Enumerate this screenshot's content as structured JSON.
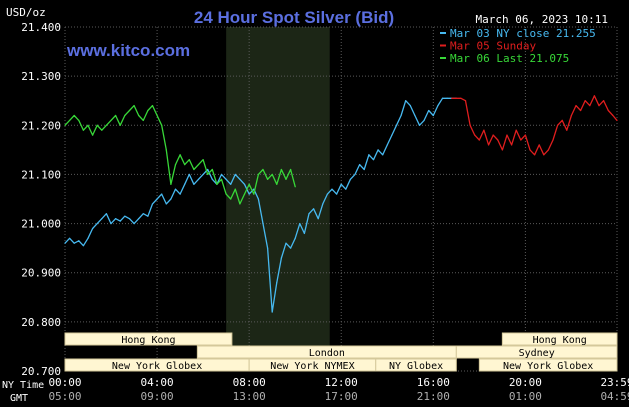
{
  "header": {
    "title": "24 Hour Spot Silver (Bid)",
    "unit_label": "USD/oz",
    "timestamp": "March 06, 2023 10:11",
    "website": "www.kitco.com"
  },
  "colors": {
    "background": "#000000",
    "title": "#5b6fe0",
    "grid": "#5a5a5a",
    "axis_text": "#ffffff",
    "series_nyclose": "#47b9f0",
    "series_sunday": "#e01e1e",
    "series_last": "#38d838",
    "session_box_fill": "#fff6d2",
    "session_box_stroke": "#d4c89a",
    "session_text": "#000000",
    "nymex_shade": "#1c2616"
  },
  "legend_items": [
    {
      "label": "Mar 03 NY close 21.255",
      "color": "#47b9f0"
    },
    {
      "label": "Mar 05 Sunday",
      "color": "#e01e1e"
    },
    {
      "label": "Mar 06 Last 21.075",
      "color": "#38d838"
    }
  ],
  "axis_labels": {
    "ny_time": "NY Time",
    "gmt": "GMT"
  },
  "x_ticks_ny": [
    "00:00",
    "04:00",
    "08:00",
    "12:00",
    "16:00",
    "20:00",
    "23:59"
  ],
  "x_ticks_gmt": [
    "05:00",
    "09:00",
    "13:00",
    "17:00",
    "21:00",
    "01:00",
    "04:59"
  ],
  "sessions": [
    {
      "label": "Hong Kong",
      "row": 0,
      "start": 0.0,
      "end": 7.25
    },
    {
      "label": "London",
      "row": 1,
      "start": 5.75,
      "end": 17.0
    },
    {
      "label": "New York Globex",
      "row": 2,
      "start": 0.0,
      "end": 8.0
    },
    {
      "label": "New York NYMEX",
      "row": 2,
      "start": 8.0,
      "end": 13.5
    },
    {
      "label": "NY Globex",
      "row": 2,
      "start": 13.5,
      "end": 17.0
    },
    {
      "label": "Hong Kong",
      "row": 0,
      "start": 19.0,
      "end": 23.98
    },
    {
      "label": "Sydney",
      "row": 1,
      "start": 17.0,
      "end": 23.98
    },
    {
      "label": "New York Globex",
      "row": 2,
      "start": 18.0,
      "end": 23.98
    }
  ],
  "chart_data": {
    "type": "line",
    "title": "24 Hour Spot Silver (Bid)",
    "ylabel": "USD/oz",
    "xlabel": "",
    "x_unit": "hours (NY time)",
    "xlim": [
      0,
      23.98
    ],
    "ylim": [
      20.7,
      21.4
    ],
    "y_ticks": [
      21.4,
      21.3,
      21.2,
      21.1,
      21.0,
      20.9,
      20.8,
      20.7
    ],
    "y_tick_labels": [
      "21.400",
      "21.300",
      "21.200",
      "21.100",
      "21.000",
      "20.900",
      "20.800",
      "20.700"
    ],
    "x_ticks": [
      0,
      4,
      8,
      12,
      16,
      20,
      23.98
    ],
    "nymex_session": [
      7.0,
      11.5
    ],
    "grid": true,
    "legend": "top-right",
    "series": [
      {
        "name": "Mar 03 NY close 21.255",
        "color": "#47b9f0",
        "x": [
          0.0,
          0.2,
          0.4,
          0.6,
          0.8,
          1.0,
          1.2,
          1.4,
          1.6,
          1.8,
          2.0,
          2.2,
          2.4,
          2.6,
          2.8,
          3.0,
          3.2,
          3.4,
          3.6,
          3.8,
          4.0,
          4.2,
          4.4,
          4.6,
          4.8,
          5.0,
          5.2,
          5.4,
          5.6,
          5.8,
          6.0,
          6.2,
          6.4,
          6.6,
          6.8,
          7.0,
          7.2,
          7.4,
          7.6,
          7.8,
          8.0,
          8.2,
          8.4,
          8.6,
          8.8,
          9.0,
          9.2,
          9.4,
          9.6,
          9.8,
          10.0,
          10.2,
          10.4,
          10.6,
          10.8,
          11.0,
          11.2,
          11.4,
          11.6,
          11.8,
          12.0,
          12.2,
          12.4,
          12.6,
          12.8,
          13.0,
          13.2,
          13.4,
          13.6,
          13.8,
          14.0,
          14.2,
          14.4,
          14.6,
          14.8,
          15.0,
          15.2,
          15.4,
          15.6,
          15.8,
          16.0,
          16.2,
          16.4,
          16.6,
          16.8,
          17.0
        ],
        "values": [
          20.96,
          20.97,
          20.96,
          20.965,
          20.955,
          20.97,
          20.99,
          21.0,
          21.01,
          21.02,
          21.0,
          21.01,
          21.005,
          21.015,
          21.01,
          21.0,
          21.01,
          21.02,
          21.015,
          21.04,
          21.05,
          21.06,
          21.04,
          21.05,
          21.07,
          21.06,
          21.08,
          21.1,
          21.08,
          21.09,
          21.1,
          21.11,
          21.09,
          21.08,
          21.1,
          21.09,
          21.08,
          21.1,
          21.09,
          21.08,
          21.06,
          21.07,
          21.05,
          21.0,
          20.95,
          20.82,
          20.88,
          20.93,
          20.96,
          20.95,
          20.97,
          21.0,
          20.98,
          21.02,
          21.03,
          21.01,
          21.04,
          21.06,
          21.07,
          21.06,
          21.08,
          21.07,
          21.09,
          21.1,
          21.12,
          21.11,
          21.14,
          21.13,
          21.15,
          21.14,
          21.16,
          21.18,
          21.2,
          21.22,
          21.25,
          21.24,
          21.22,
          21.2,
          21.21,
          21.23,
          21.22,
          21.24,
          21.255,
          21.255,
          21.255,
          21.255
        ]
      },
      {
        "name": "Mar 05 Sunday",
        "color": "#e01e1e",
        "x": [
          16.8,
          17.0,
          17.2,
          17.4,
          17.6,
          17.8,
          18.0,
          18.2,
          18.4,
          18.6,
          18.8,
          19.0,
          19.2,
          19.4,
          19.6,
          19.8,
          20.0,
          20.2,
          20.4,
          20.6,
          20.8,
          21.0,
          21.2,
          21.4,
          21.6,
          21.8,
          22.0,
          22.2,
          22.4,
          22.6,
          22.8,
          23.0,
          23.2,
          23.4,
          23.6,
          23.8,
          23.98
        ],
        "values": [
          21.255,
          21.255,
          21.255,
          21.25,
          21.2,
          21.18,
          21.17,
          21.19,
          21.16,
          21.18,
          21.17,
          21.15,
          21.18,
          21.16,
          21.19,
          21.17,
          21.18,
          21.15,
          21.14,
          21.16,
          21.14,
          21.15,
          21.17,
          21.2,
          21.21,
          21.19,
          21.22,
          21.24,
          21.23,
          21.25,
          21.24,
          21.26,
          21.24,
          21.25,
          21.23,
          21.22,
          21.21
        ]
      },
      {
        "name": "Mar 06 Last 21.075",
        "color": "#38d838",
        "x": [
          0.0,
          0.2,
          0.4,
          0.6,
          0.8,
          1.0,
          1.2,
          1.4,
          1.6,
          1.8,
          2.0,
          2.2,
          2.4,
          2.6,
          2.8,
          3.0,
          3.2,
          3.4,
          3.6,
          3.8,
          4.0,
          4.2,
          4.4,
          4.6,
          4.8,
          5.0,
          5.2,
          5.4,
          5.6,
          5.8,
          6.0,
          6.2,
          6.4,
          6.6,
          6.8,
          7.0,
          7.2,
          7.4,
          7.6,
          7.8,
          8.0,
          8.2,
          8.4,
          8.6,
          8.8,
          9.0,
          9.2,
          9.4,
          9.6,
          9.8,
          10.0
        ],
        "values": [
          21.2,
          21.21,
          21.22,
          21.21,
          21.19,
          21.2,
          21.18,
          21.2,
          21.19,
          21.2,
          21.21,
          21.22,
          21.2,
          21.22,
          21.23,
          21.24,
          21.22,
          21.21,
          21.23,
          21.24,
          21.22,
          21.2,
          21.15,
          21.08,
          21.12,
          21.14,
          21.12,
          21.13,
          21.11,
          21.12,
          21.13,
          21.1,
          21.11,
          21.08,
          21.09,
          21.06,
          21.05,
          21.07,
          21.04,
          21.06,
          21.08,
          21.06,
          21.1,
          21.11,
          21.09,
          21.1,
          21.08,
          21.11,
          21.09,
          21.11,
          21.075
        ]
      }
    ]
  }
}
